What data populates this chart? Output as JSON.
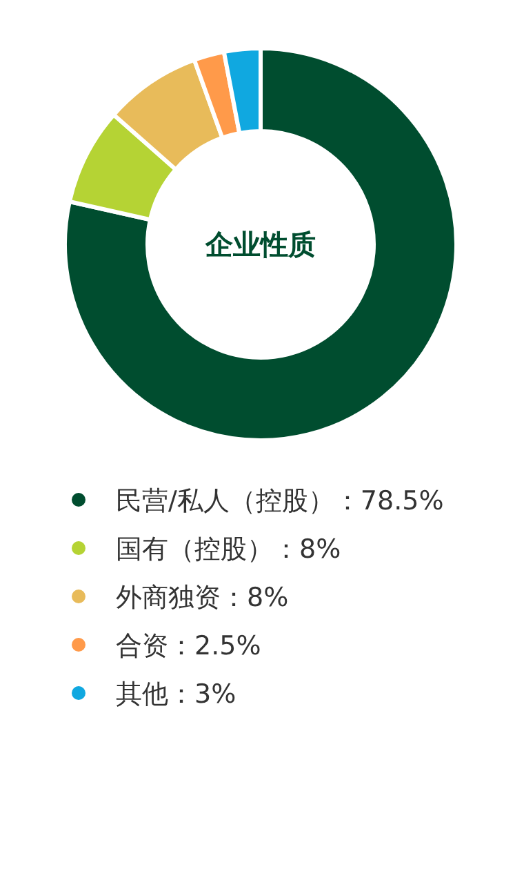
{
  "chart_data": {
    "type": "donut",
    "title": "企业性质",
    "categories": [
      "民营/私人（控股）",
      "国有（控股）",
      "外商独资",
      "合资",
      "其他"
    ],
    "values": [
      78.5,
      8,
      8,
      2.5,
      3
    ],
    "value_labels": [
      "78.5%",
      "8%",
      "8%",
      "2.5%",
      "3%"
    ],
    "colors": [
      "#004d2f",
      "#b5d334",
      "#e8bb5a",
      "#ff9a4a",
      "#10a8e0"
    ],
    "legend": "bottom"
  }
}
